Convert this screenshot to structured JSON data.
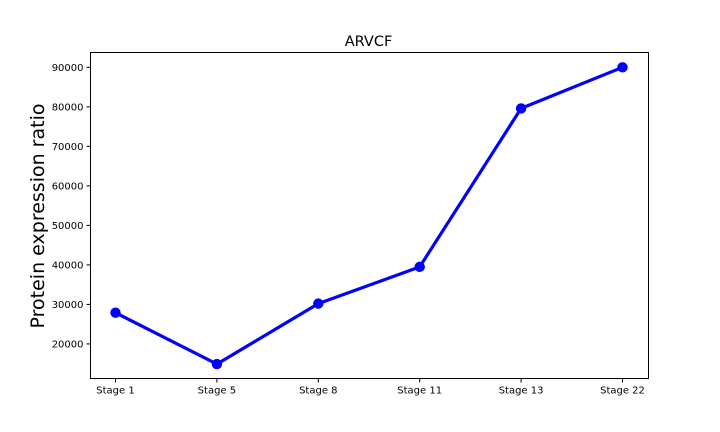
{
  "chart_data": {
    "type": "line",
    "title": "ARVCF",
    "xlabel": "",
    "ylabel": "Protein expression ratio",
    "categories": [
      "Stage 1",
      "Stage 5",
      "Stage 8",
      "Stage 11",
      "Stage 13",
      "Stage 22"
    ],
    "series": [
      {
        "values": [
          27900,
          14900,
          30200,
          39500,
          79600,
          90000
        ],
        "color": "#0000ff",
        "marker": "circle"
      }
    ],
    "yticks": [
      20000,
      30000,
      40000,
      50000,
      60000,
      70000,
      80000,
      90000
    ],
    "ytick_labels": [
      "20000",
      "30000",
      "40000",
      "50000",
      "60000",
      "70000",
      "80000",
      "90000"
    ],
    "ylim": [
      11250,
      93750
    ],
    "grid": false,
    "legend": "none"
  }
}
